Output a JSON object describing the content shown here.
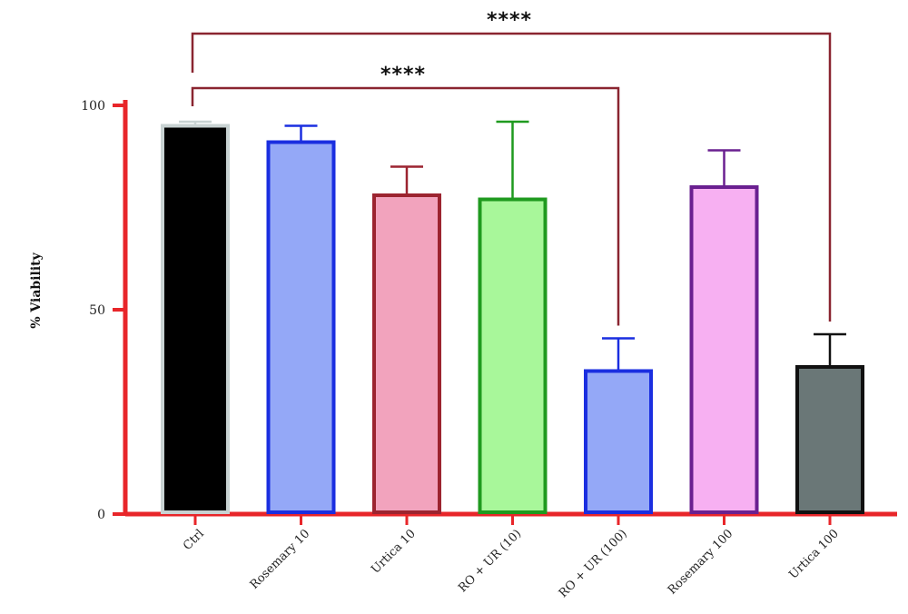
{
  "chart_data": {
    "type": "bar",
    "title": "",
    "xlabel": "",
    "ylabel": "% Viability",
    "ylim": [
      0,
      100
    ],
    "yticks": [
      "0",
      "50",
      "100"
    ],
    "categories": [
      "Ctrl",
      "Rosemary 10",
      "Urtica 10",
      "RO + UR (10)",
      "RO + UR (100)",
      "Rosemary 100",
      "Urtica 100"
    ],
    "values": [
      95,
      91,
      78,
      77,
      35,
      80,
      36
    ],
    "error": [
      1,
      4,
      7,
      19,
      8,
      9,
      8
    ],
    "fill_colors": [
      "#000000",
      "#94a8f7",
      "#f2a3bd",
      "#a8f79a",
      "#94a8f7",
      "#f7b0f2",
      "#6a7777"
    ],
    "edge_colors": [
      "#c8d2d2",
      "#1a2ee0",
      "#9c2430",
      "#1f9a1f",
      "#1a2ee0",
      "#6a2090",
      "#111111"
    ],
    "axis_color": "#e8262a",
    "significance": [
      {
        "from": "Ctrl",
        "to": "Urtica 100",
        "label": "****",
        "color": "#8a2530"
      },
      {
        "from": "Ctrl",
        "to": "RO + UR (100)",
        "label": "****",
        "color": "#8a2530"
      }
    ],
    "grid": false,
    "legend": "none"
  }
}
